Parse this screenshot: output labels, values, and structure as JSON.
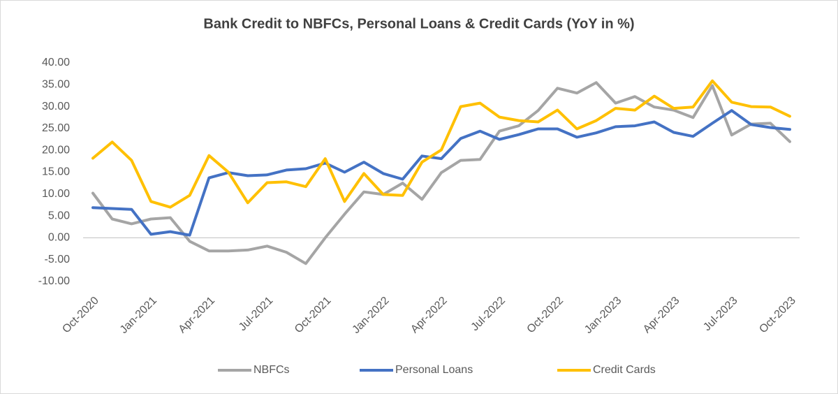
{
  "chart_data": {
    "type": "line",
    "title": "Bank Credit to NBFCs, Personal Loans & Credit Cards (YoY in %)",
    "categories": [
      "Oct-2020",
      null,
      null,
      "Jan-2021",
      null,
      null,
      "Apr-2021",
      null,
      null,
      "Jul-2021",
      null,
      null,
      "Oct-2021",
      null,
      null,
      "Jan-2022",
      null,
      null,
      "Apr-2022",
      null,
      null,
      "Jul-2022",
      null,
      null,
      "Oct-2022",
      null,
      null,
      "Jan-2023",
      null,
      null,
      "Apr-2023",
      null,
      null,
      "Jul-2023",
      null,
      null,
      "Oct-2023"
    ],
    "series": [
      {
        "name": "NBFCs",
        "color": "#a5a5a5",
        "values": [
          10.2,
          4.3,
          3.2,
          4.3,
          4.6,
          -0.8,
          -3.0,
          -3.0,
          -2.8,
          -1.9,
          -3.3,
          -5.9,
          0.0,
          5.4,
          10.5,
          9.9,
          12.5,
          8.8,
          14.9,
          17.7,
          17.9,
          24.4,
          25.6,
          29.1,
          34.2,
          33.1,
          35.5,
          30.8,
          32.3,
          29.9,
          29.2,
          27.5,
          34.8,
          23.5,
          26.0,
          26.2,
          22.0
        ]
      },
      {
        "name": "Personal Loans",
        "color": "#4472c4",
        "values": [
          6.9,
          6.7,
          6.5,
          0.8,
          1.4,
          0.6,
          13.7,
          14.9,
          14.2,
          14.4,
          15.5,
          15.8,
          17.1,
          15.0,
          17.3,
          14.7,
          13.4,
          18.7,
          18.1,
          22.7,
          24.4,
          22.5,
          23.6,
          24.9,
          24.9,
          23.0,
          24.0,
          25.4,
          25.6,
          26.5,
          24.1,
          23.2,
          26.2,
          29.1,
          25.9,
          25.2,
          24.8
        ]
      },
      {
        "name": "Credit Cards",
        "color": "#ffc000",
        "values": [
          18.2,
          21.9,
          17.7,
          8.3,
          7.0,
          9.7,
          18.8,
          15.0,
          8.0,
          12.6,
          12.8,
          11.7,
          18.1,
          8.3,
          14.7,
          9.9,
          9.7,
          17.3,
          20.1,
          30.0,
          30.8,
          27.6,
          26.8,
          26.5,
          29.2,
          24.9,
          26.8,
          29.6,
          29.2,
          32.4,
          29.6,
          29.9,
          35.9,
          31.0,
          30.0,
          29.9,
          27.8
        ]
      }
    ],
    "ylim": [
      -10,
      40
    ],
    "yticks": [
      {
        "value": -10,
        "label": "-10.00"
      },
      {
        "value": -5,
        "label": "-5.00"
      },
      {
        "value": 0,
        "label": "0.00"
      },
      {
        "value": 5,
        "label": "5.00"
      },
      {
        "value": 10,
        "label": "10.00"
      },
      {
        "value": 15,
        "label": "15.00"
      },
      {
        "value": 20,
        "label": "20.00"
      },
      {
        "value": 25,
        "label": "25.00"
      },
      {
        "value": 30,
        "label": "30.00"
      },
      {
        "value": 35,
        "label": "35.00"
      },
      {
        "value": 40,
        "label": "40.00"
      }
    ],
    "grid": false,
    "legend": "bottom"
  }
}
